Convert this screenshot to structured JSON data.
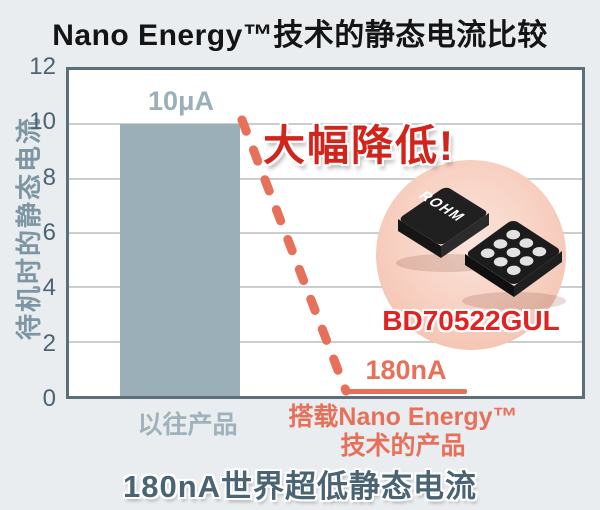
{
  "page": {
    "title": "Nano Energy™技术的静态电流比较",
    "footer": "180nA世界超低静态电流"
  },
  "chart_data": {
    "type": "bar",
    "title": "Nano Energy™技术的静态电流比较",
    "ylabel": "待机时的静态电流",
    "xlabel": "",
    "ylim": [
      0,
      12
    ],
    "yticks": [
      0,
      2,
      4,
      6,
      8,
      10,
      12
    ],
    "grid": true,
    "legend": false,
    "unit": "μA",
    "categories": [
      "以往产品",
      "搭载Nano Energy™技术的产品"
    ],
    "category_lines": [
      [
        "以往产品"
      ],
      [
        "搭载Nano Energy™",
        "技术的产品"
      ]
    ],
    "values": [
      10,
      0.18
    ],
    "value_labels": [
      "10μA",
      "180nA"
    ],
    "bar_colors": [
      "#9bafb9",
      "#e7705a"
    ]
  },
  "annotations": {
    "reduction": "大幅降低!",
    "product_name": "BD70522GUL",
    "chip_logo": "ROHM"
  },
  "colors": {
    "background": "#e9edf0",
    "plot_background": "#ffffff",
    "plot_border": "#5a6f7b",
    "gridline": "#c9ced2",
    "bar_conventional": "#9bafb9",
    "accent_salmon": "#e7705a",
    "accent_red": "#d1251c",
    "product_red": "#e02222",
    "dark_text": "#4a6473",
    "axis_title": "#7e96a3"
  }
}
